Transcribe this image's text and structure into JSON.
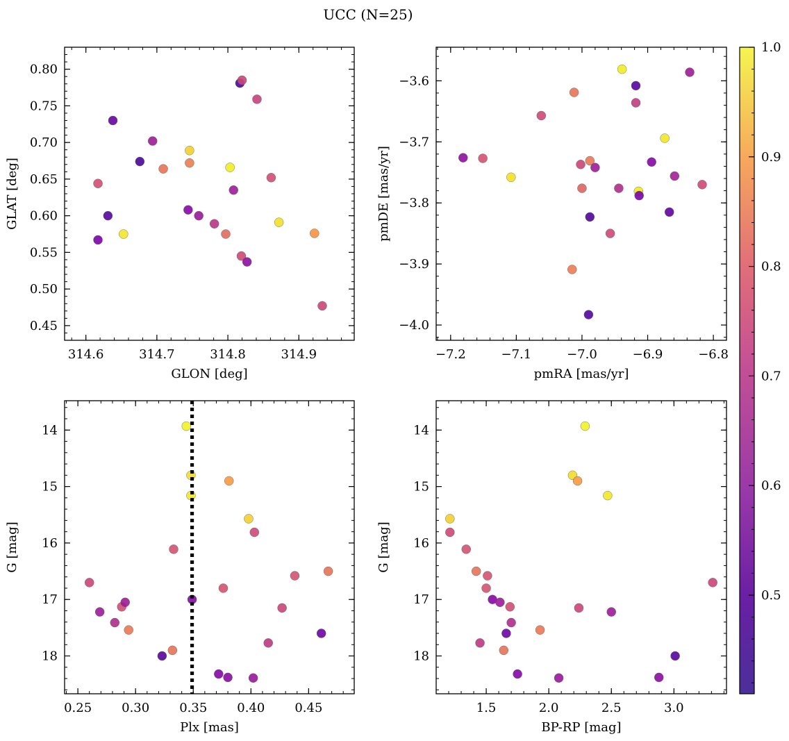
{
  "title": "UCC (N=25)",
  "colorbar": {
    "cmap": "plasma",
    "range": [
      0.41,
      1.0
    ],
    "ticks": [
      "0.5",
      "0.6",
      "0.7",
      "0.8",
      "0.9",
      "1.0"
    ],
    "tick_values": [
      0.5,
      0.6,
      0.7,
      0.8,
      0.9,
      1.0
    ]
  },
  "chart_data": [
    {
      "type": "scatter",
      "xlabel": "GLON [deg]",
      "ylabel": "GLAT [deg]",
      "xlim": [
        314.57,
        314.978
      ],
      "ylim": [
        0.43,
        0.83
      ],
      "invert_y": false,
      "xticks": [
        "314.6",
        "314.7",
        "314.8",
        "314.9"
      ],
      "xtick_values": [
        314.6,
        314.7,
        314.8,
        314.9
      ],
      "yticks": [
        "0.45",
        "0.50",
        "0.55",
        "0.60",
        "0.65",
        "0.70",
        "0.75",
        "0.80"
      ],
      "ytick_values": [
        0.45,
        0.5,
        0.55,
        0.6,
        0.65,
        0.7,
        0.75,
        0.8
      ],
      "points": [
        {
          "x": 314.638,
          "y": 0.73,
          "c": 0.46
        },
        {
          "x": 314.617,
          "y": 0.644,
          "c": 0.68
        },
        {
          "x": 314.631,
          "y": 0.6,
          "c": 0.44
        },
        {
          "x": 314.617,
          "y": 0.567,
          "c": 0.49
        },
        {
          "x": 314.653,
          "y": 0.575,
          "c": 0.97
        },
        {
          "x": 314.676,
          "y": 0.674,
          "c": 0.42
        },
        {
          "x": 314.694,
          "y": 0.702,
          "c": 0.56
        },
        {
          "x": 314.709,
          "y": 0.664,
          "c": 0.76
        },
        {
          "x": 314.746,
          "y": 0.689,
          "c": 0.93
        },
        {
          "x": 314.746,
          "y": 0.672,
          "c": 0.78
        },
        {
          "x": 314.744,
          "y": 0.608,
          "c": 0.51
        },
        {
          "x": 314.759,
          "y": 0.6,
          "c": 0.55
        },
        {
          "x": 314.781,
          "y": 0.589,
          "c": 0.62
        },
        {
          "x": 314.797,
          "y": 0.575,
          "c": 0.74
        },
        {
          "x": 314.803,
          "y": 0.666,
          "c": 0.98
        },
        {
          "x": 314.808,
          "y": 0.635,
          "c": 0.56
        },
        {
          "x": 314.817,
          "y": 0.781,
          "c": 0.42
        },
        {
          "x": 314.82,
          "y": 0.785,
          "c": 0.66
        },
        {
          "x": 314.841,
          "y": 0.759,
          "c": 0.65
        },
        {
          "x": 314.819,
          "y": 0.545,
          "c": 0.67
        },
        {
          "x": 314.827,
          "y": 0.537,
          "c": 0.53
        },
        {
          "x": 314.861,
          "y": 0.652,
          "c": 0.68
        },
        {
          "x": 314.872,
          "y": 0.591,
          "c": 0.96
        },
        {
          "x": 314.922,
          "y": 0.576,
          "c": 0.83
        },
        {
          "x": 314.933,
          "y": 0.477,
          "c": 0.66
        }
      ]
    },
    {
      "type": "scatter",
      "xlabel": "pmRA [mas/yr]",
      "ylabel": "pmDE [mas/yr]",
      "xlim": [
        -7.222,
        -6.78
      ],
      "ylim": [
        -4.025,
        -3.545
      ],
      "invert_y": false,
      "xticks": [
        "−7.2",
        "−7.1",
        "−7.0",
        "−6.9",
        "−6.8"
      ],
      "xtick_values": [
        -7.2,
        -7.1,
        -7.0,
        -6.9,
        -6.8
      ],
      "yticks": [
        "−4.0",
        "−3.9",
        "−3.8",
        "−3.7",
        "−3.6"
      ],
      "ytick_values": [
        -4.0,
        -3.9,
        -3.8,
        -3.7,
        -3.6
      ],
      "points": [
        {
          "x": -7.181,
          "y": -3.726,
          "c": 0.53
        },
        {
          "x": -7.151,
          "y": -3.727,
          "c": 0.69
        },
        {
          "x": -7.108,
          "y": -3.758,
          "c": 0.96
        },
        {
          "x": -7.062,
          "y": -3.657,
          "c": 0.67
        },
        {
          "x": -7.012,
          "y": -3.619,
          "c": 0.76
        },
        {
          "x": -7.002,
          "y": -3.737,
          "c": 0.66
        },
        {
          "x": -7.0,
          "y": -3.776,
          "c": 0.73
        },
        {
          "x": -6.988,
          "y": -3.731,
          "c": 0.77
        },
        {
          "x": -6.98,
          "y": -3.742,
          "c": 0.56
        },
        {
          "x": -6.988,
          "y": -3.823,
          "c": 0.43
        },
        {
          "x": -7.015,
          "y": -3.909,
          "c": 0.78
        },
        {
          "x": -6.99,
          "y": -3.983,
          "c": 0.44
        },
        {
          "x": -6.957,
          "y": -3.85,
          "c": 0.67
        },
        {
          "x": -6.944,
          "y": -3.776,
          "c": 0.6
        },
        {
          "x": -6.939,
          "y": -3.581,
          "c": 0.98
        },
        {
          "x": -6.918,
          "y": -3.608,
          "c": 0.44
        },
        {
          "x": -6.918,
          "y": -3.636,
          "c": 0.64
        },
        {
          "x": -6.914,
          "y": -3.781,
          "c": 0.97
        },
        {
          "x": -6.913,
          "y": -3.788,
          "c": 0.49
        },
        {
          "x": -6.894,
          "y": -3.733,
          "c": 0.51
        },
        {
          "x": -6.874,
          "y": -3.694,
          "c": 0.97
        },
        {
          "x": -6.859,
          "y": -3.756,
          "c": 0.57
        },
        {
          "x": -6.867,
          "y": -3.815,
          "c": 0.45
        },
        {
          "x": -6.836,
          "y": -3.586,
          "c": 0.56
        },
        {
          "x": -6.817,
          "y": -3.77,
          "c": 0.67
        }
      ]
    },
    {
      "type": "scatter",
      "xlabel": "Plx [mas]",
      "ylabel": "G [mag]",
      "xlim": [
        0.2385,
        0.4895
      ],
      "ylim": [
        18.67,
        13.48
      ],
      "invert_y": true,
      "vline": {
        "x": 0.349,
        "style": "dotted"
      },
      "xticks": [
        "0.25",
        "0.30",
        "0.35",
        "0.40",
        "0.45"
      ],
      "xtick_values": [
        0.25,
        0.3,
        0.35,
        0.4,
        0.45
      ],
      "yticks": [
        "14",
        "15",
        "16",
        "17",
        "18"
      ],
      "ytick_values": [
        14,
        15,
        16,
        17,
        18
      ],
      "points": [
        {
          "x": 0.26,
          "y": 16.7,
          "c": 0.66
        },
        {
          "x": 0.269,
          "y": 17.22,
          "c": 0.56
        },
        {
          "x": 0.282,
          "y": 17.41,
          "c": 0.6
        },
        {
          "x": 0.288,
          "y": 17.13,
          "c": 0.68
        },
        {
          "x": 0.291,
          "y": 17.05,
          "c": 0.56
        },
        {
          "x": 0.294,
          "y": 17.54,
          "c": 0.77
        },
        {
          "x": 0.323,
          "y": 18.0,
          "c": 0.44
        },
        {
          "x": 0.332,
          "y": 17.9,
          "c": 0.76
        },
        {
          "x": 0.333,
          "y": 16.11,
          "c": 0.69
        },
        {
          "x": 0.344,
          "y": 13.93,
          "c": 0.99
        },
        {
          "x": 0.348,
          "y": 14.8,
          "c": 0.95
        },
        {
          "x": 0.348,
          "y": 15.16,
          "c": 0.97
        },
        {
          "x": 0.349,
          "y": 17.0,
          "c": 0.51
        },
        {
          "x": 0.372,
          "y": 18.32,
          "c": 0.51
        },
        {
          "x": 0.376,
          "y": 16.8,
          "c": 0.69
        },
        {
          "x": 0.38,
          "y": 18.38,
          "c": 0.52
        },
        {
          "x": 0.381,
          "y": 14.9,
          "c": 0.84
        },
        {
          "x": 0.398,
          "y": 15.57,
          "c": 0.93
        },
        {
          "x": 0.402,
          "y": 18.39,
          "c": 0.55
        },
        {
          "x": 0.403,
          "y": 15.81,
          "c": 0.67
        },
        {
          "x": 0.415,
          "y": 17.77,
          "c": 0.63
        },
        {
          "x": 0.427,
          "y": 17.15,
          "c": 0.66
        },
        {
          "x": 0.438,
          "y": 16.58,
          "c": 0.69
        },
        {
          "x": 0.461,
          "y": 17.6,
          "c": 0.47
        },
        {
          "x": 0.467,
          "y": 16.5,
          "c": 0.76
        }
      ]
    },
    {
      "type": "scatter",
      "xlabel": "BP-RP [mag]",
      "ylabel": "G [mag]",
      "xlim": [
        1.1,
        3.42
      ],
      "ylim": [
        18.67,
        13.48
      ],
      "invert_y": true,
      "xticks": [
        "1.5",
        "2.0",
        "2.5",
        "3.0"
      ],
      "xtick_values": [
        1.5,
        2.0,
        2.5,
        3.0
      ],
      "yticks": [
        "14",
        "15",
        "16",
        "17",
        "18"
      ],
      "ytick_values": [
        14,
        15,
        16,
        17,
        18
      ],
      "points": [
        {
          "x": 1.21,
          "y": 15.57,
          "c": 0.93
        },
        {
          "x": 1.21,
          "y": 15.81,
          "c": 0.67
        },
        {
          "x": 1.34,
          "y": 16.11,
          "c": 0.69
        },
        {
          "x": 1.42,
          "y": 16.5,
          "c": 0.76
        },
        {
          "x": 1.51,
          "y": 16.58,
          "c": 0.69
        },
        {
          "x": 1.5,
          "y": 16.8,
          "c": 0.69
        },
        {
          "x": 1.55,
          "y": 17.0,
          "c": 0.51
        },
        {
          "x": 1.61,
          "y": 17.05,
          "c": 0.56
        },
        {
          "x": 1.69,
          "y": 17.13,
          "c": 0.68
        },
        {
          "x": 1.7,
          "y": 17.41,
          "c": 0.6
        },
        {
          "x": 1.66,
          "y": 17.6,
          "c": 0.47
        },
        {
          "x": 1.45,
          "y": 17.77,
          "c": 0.63
        },
        {
          "x": 1.64,
          "y": 17.9,
          "c": 0.76
        },
        {
          "x": 1.75,
          "y": 18.32,
          "c": 0.51
        },
        {
          "x": 1.93,
          "y": 17.54,
          "c": 0.77
        },
        {
          "x": 2.08,
          "y": 18.39,
          "c": 0.55
        },
        {
          "x": 2.19,
          "y": 14.8,
          "c": 0.95
        },
        {
          "x": 2.23,
          "y": 14.9,
          "c": 0.84
        },
        {
          "x": 2.29,
          "y": 13.93,
          "c": 0.99
        },
        {
          "x": 2.24,
          "y": 17.15,
          "c": 0.66
        },
        {
          "x": 2.47,
          "y": 15.16,
          "c": 0.97
        },
        {
          "x": 2.5,
          "y": 17.22,
          "c": 0.56
        },
        {
          "x": 2.88,
          "y": 18.38,
          "c": 0.52
        },
        {
          "x": 3.01,
          "y": 18.0,
          "c": 0.44
        },
        {
          "x": 3.31,
          "y": 16.7,
          "c": 0.66
        }
      ]
    }
  ]
}
